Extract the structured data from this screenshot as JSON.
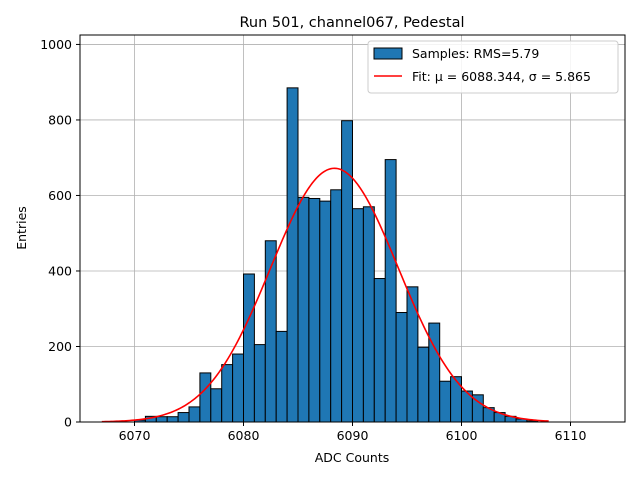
{
  "colors": {
    "bar_fill": "#1f77b4",
    "bar_edge": "#000000",
    "fit_line": "#ff0000",
    "grid": "#b0b0b0"
  },
  "chart_data": {
    "type": "bar",
    "title": "Run 501, channel067, Pedestal",
    "xlabel": "ADC Counts",
    "ylabel": "Entries",
    "xlim": [
      6065,
      6115
    ],
    "ylim": [
      0,
      1025
    ],
    "xticks": [
      6070,
      6080,
      6090,
      6100,
      6110
    ],
    "yticks": [
      0,
      200,
      400,
      600,
      800,
      1000
    ],
    "grid": true,
    "legend_position": "top-right",
    "bin_width": 1,
    "series": [
      {
        "name": "Samples: RMS=5.79",
        "type": "histogram",
        "bin_left_edges": [
          6070,
          6071,
          6072,
          6073,
          6074,
          6075,
          6076,
          6077,
          6078,
          6079,
          6080,
          6081,
          6082,
          6083,
          6084,
          6085,
          6086,
          6087,
          6088,
          6089,
          6090,
          6091,
          6092,
          6093,
          6094,
          6095,
          6096,
          6097,
          6098,
          6099,
          6100,
          6101,
          6102,
          6103,
          6104,
          6105,
          6106
        ],
        "values": [
          5,
          15,
          14,
          14,
          25,
          40,
          130,
          88,
          152,
          180,
          392,
          205,
          480,
          240,
          885,
          595,
          592,
          585,
          615,
          798,
          565,
          570,
          380,
          695,
          290,
          358,
          198,
          262,
          108,
          120,
          82,
          72,
          38,
          25,
          15,
          8,
          3
        ]
      },
      {
        "name": "Fit: μ = 6088.344, σ = 5.865",
        "type": "gaussian_fit",
        "mu": 6088.344,
        "sigma": 5.865,
        "amplitude": 672,
        "x_range": [
          6067,
          6108
        ]
      }
    ]
  }
}
